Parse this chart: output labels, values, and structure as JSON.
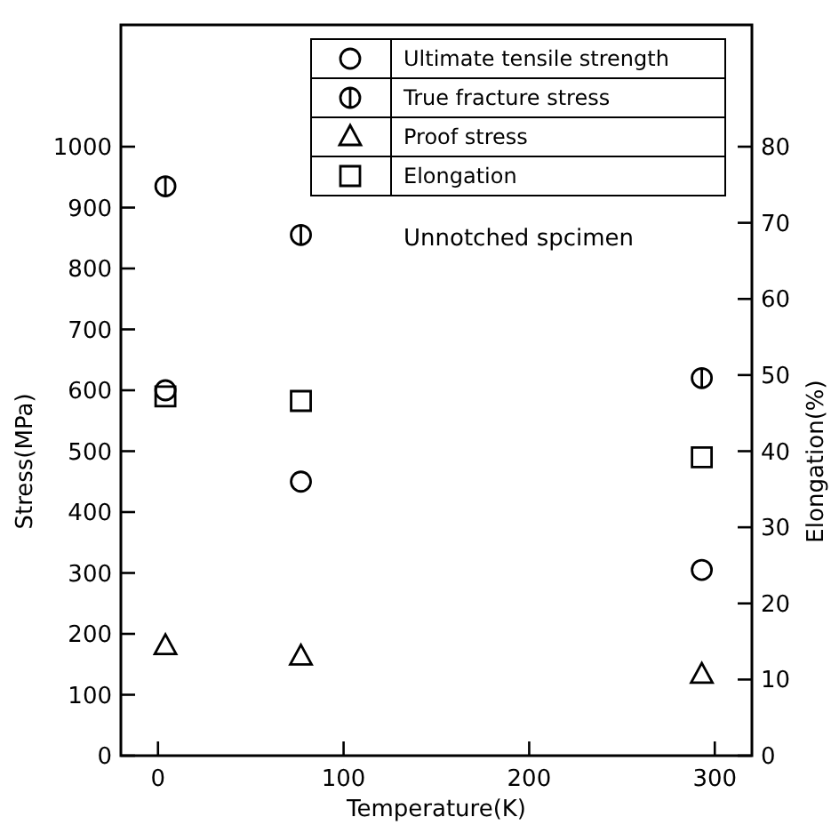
{
  "chart_data": {
    "type": "scatter",
    "xlabel": "Temperature(K)",
    "ylabel": "Stress(MPa)",
    "y2label": "Elongation(%)",
    "xlim": [
      -20,
      320
    ],
    "xticks": [
      0,
      100,
      200,
      300
    ],
    "ylim": [
      0,
      1200
    ],
    "yticks": [
      0,
      100,
      200,
      300,
      400,
      500,
      600,
      700,
      800,
      900,
      1000
    ],
    "y2lim": [
      0,
      96
    ],
    "y2ticks": [
      0,
      10,
      20,
      30,
      40,
      50,
      60,
      70,
      80
    ],
    "series": [
      {
        "name": "Ultimate tensile strength",
        "color": "#000000",
        "marker": "circle",
        "x": [
          4,
          77,
          293
        ],
        "values": [
          600,
          450,
          305
        ]
      },
      {
        "name": "True fracture stress",
        "color": "#000000",
        "marker": "cross",
        "x": [
          4,
          77,
          293
        ],
        "values": [
          935,
          855,
          620
        ]
      },
      {
        "name": "Proof stress",
        "color": "#000000",
        "marker": "triangle",
        "x": [
          4,
          77,
          293
        ],
        "values": [
          180,
          163,
          133
        ]
      },
      {
        "name": "Elongation",
        "color": "#000000",
        "marker": "square",
        "axis": "y2",
        "x": [
          4,
          77,
          293
        ],
        "values": [
          47.2,
          46.6,
          39.2
        ]
      }
    ],
    "annotations": [
      "Unnotched spcimen"
    ],
    "legend": "top right",
    "grid": false
  }
}
